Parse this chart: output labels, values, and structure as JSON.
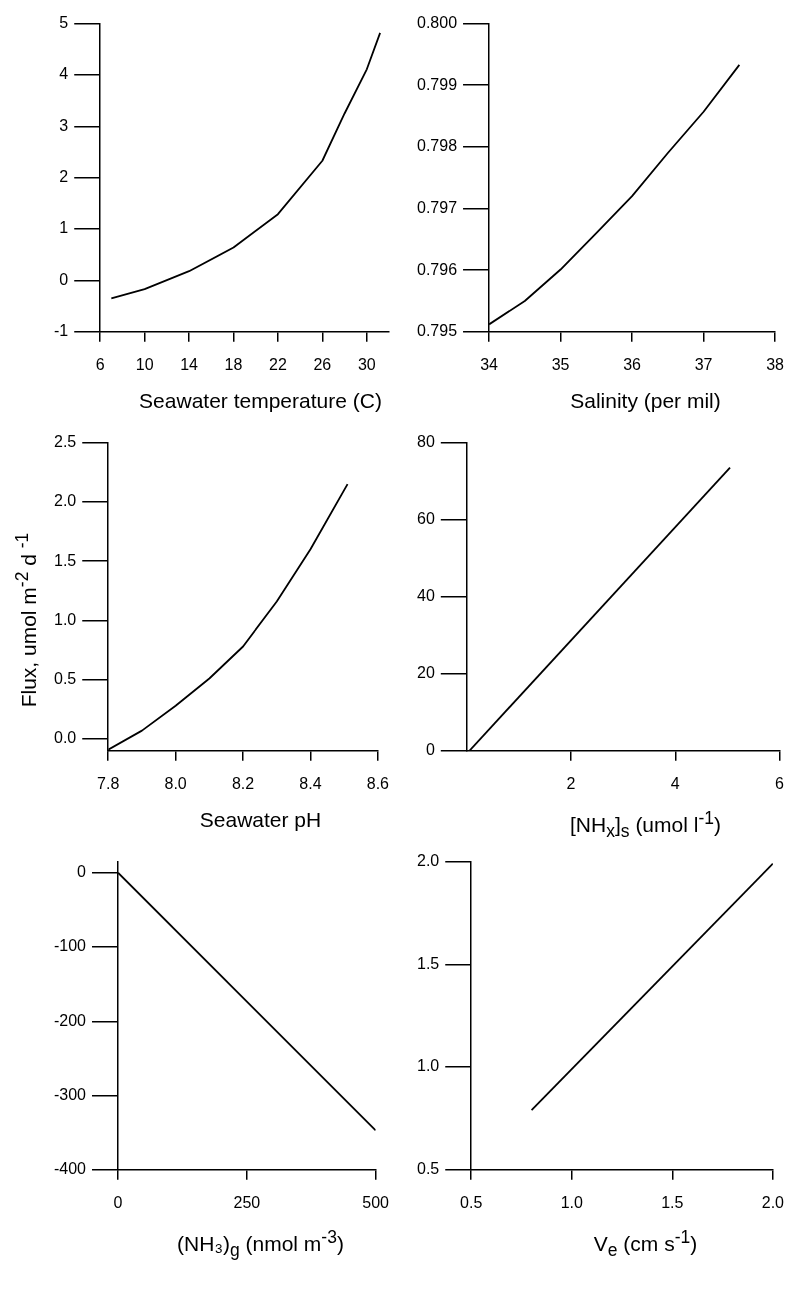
{
  "chart_data": [
    {
      "type": "line",
      "xlabel": "Seawater temperature (C)",
      "xlim": [
        6,
        32
      ],
      "xticks": [
        6,
        10,
        14,
        18,
        22,
        26,
        30
      ],
      "ylim": [
        -1,
        5
      ],
      "yticks": [
        -1,
        0,
        1,
        2,
        3,
        4,
        5
      ],
      "series": [
        {
          "color": "#000000",
          "x": [
            7,
            10,
            14,
            18,
            22,
            26,
            28,
            30,
            31.2
          ],
          "values": [
            -0.35,
            -0.17,
            0.18,
            0.64,
            1.29,
            2.33,
            3.25,
            4.11,
            4.82
          ]
        }
      ]
    },
    {
      "type": "line",
      "xlabel": "Salinity (per mil)",
      "xlim": [
        34,
        38
      ],
      "xticks": [
        34,
        35,
        36,
        37,
        38
      ],
      "ylim": [
        0.795,
        0.8
      ],
      "yticks": [
        0.795,
        0.796,
        0.797,
        0.798,
        0.799,
        {
          "value": 0.8,
          "label": "0.800"
        }
      ],
      "series": [
        {
          "color": "#000000",
          "x": [
            34,
            34.5,
            35,
            35.5,
            36,
            36.5,
            37,
            37.5
          ],
          "values": [
            0.79512,
            0.7955,
            0.79601,
            0.7966,
            0.7972,
            0.7979,
            0.79857,
            0.79933
          ]
        }
      ]
    },
    {
      "type": "line",
      "xlabel": "Seawater pH",
      "ylabel": "Flux, umol m$^{-2}$ d $^{-1}$",
      "xlim": [
        7.8,
        8.6
      ],
      "xticks": [
        7.8,
        {
          "value": 8,
          "label": "8.0"
        },
        8.2,
        8.4,
        8.6
      ],
      "ylim": [
        -0.1,
        2.5
      ],
      "yticks": [
        {
          "value": 0,
          "label": "0.0"
        },
        0.5,
        {
          "value": 1,
          "label": "1.0"
        },
        1.5,
        {
          "value": 2,
          "label": "2.0"
        },
        2.5
      ],
      "series": [
        {
          "color": "#000000",
          "x": [
            7.8,
            7.9,
            8.0,
            8.1,
            8.2,
            8.3,
            8.4,
            8.51
          ],
          "values": [
            -0.09,
            0.07,
            0.28,
            0.51,
            0.78,
            1.16,
            1.6,
            2.15
          ]
        }
      ]
    },
    {
      "type": "line",
      "xlabel": "[NH$_{x}$]$_{s}$ (umol l$^{-1}$)",
      "xlim": [
        0,
        6
      ],
      "xticks": [
        2,
        4,
        6
      ],
      "ylim": [
        0,
        80
      ],
      "yticks": [
        0,
        20,
        40,
        60,
        80
      ],
      "series": [
        {
          "color": "#000000",
          "x": [
            0.05,
            5.05
          ],
          "values": [
            0,
            73.5
          ]
        }
      ]
    },
    {
      "type": "line",
      "xlabel": "(NH₃)$_{g}$ (nmol m$^{-3}$)",
      "xlim": [
        0,
        500
      ],
      "xticks": [
        0,
        250,
        500
      ],
      "ylim": [
        -400,
        15
      ],
      "yticks": [
        -400,
        -300,
        -200,
        -100,
        0
      ],
      "series": [
        {
          "color": "#000000",
          "x": [
            0,
            500
          ],
          "values": [
            0,
            -347
          ]
        }
      ]
    },
    {
      "type": "line",
      "xlabel": "V$_{e}$ (cm s$^{-1}$)",
      "xlim": [
        0.5,
        2
      ],
      "xticks": [
        0.5,
        {
          "value": 1,
          "label": "1.0"
        },
        1.5,
        {
          "value": 2,
          "label": "2.0"
        }
      ],
      "ylim": [
        0.5,
        2
      ],
      "yticks": [
        0.5,
        {
          "value": 1,
          "label": "1.0"
        },
        1.5,
        {
          "value": 2,
          "label": "2.0"
        }
      ],
      "series": [
        {
          "color": "#000000",
          "x": [
            0.8,
            2.0
          ],
          "values": [
            0.79,
            1.99
          ]
        }
      ]
    }
  ]
}
